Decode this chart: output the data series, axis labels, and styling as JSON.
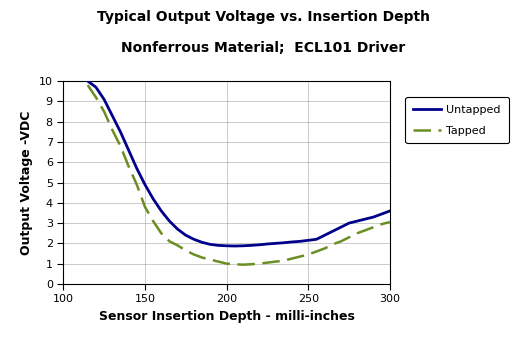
{
  "title_line1": "Typical Output Voltage vs. Insertion Depth",
  "title_line2": "Nonferrous Material;  ECL101 Driver",
  "xlabel": "Sensor Insertion Depth - milli-inches",
  "ylabel": "Output Voltage -VDC",
  "xlim": [
    100,
    300
  ],
  "ylim": [
    0,
    10
  ],
  "xticks": [
    100,
    150,
    200,
    250,
    300
  ],
  "yticks": [
    0,
    1,
    2,
    3,
    4,
    5,
    6,
    7,
    8,
    9,
    10
  ],
  "untapped_x": [
    115,
    120,
    125,
    130,
    135,
    140,
    145,
    150,
    155,
    160,
    165,
    170,
    175,
    180,
    185,
    190,
    195,
    200,
    205,
    210,
    215,
    220,
    225,
    230,
    235,
    240,
    245,
    250,
    255,
    260,
    265,
    270,
    275,
    280,
    285,
    290,
    295,
    300
  ],
  "untapped_y": [
    10.0,
    9.7,
    9.1,
    8.3,
    7.5,
    6.6,
    5.7,
    4.9,
    4.2,
    3.6,
    3.1,
    2.7,
    2.4,
    2.2,
    2.05,
    1.95,
    1.9,
    1.88,
    1.87,
    1.88,
    1.9,
    1.93,
    1.97,
    2.0,
    2.03,
    2.07,
    2.1,
    2.15,
    2.2,
    2.4,
    2.6,
    2.8,
    3.0,
    3.1,
    3.2,
    3.3,
    3.45,
    3.6
  ],
  "tapped_x": [
    115,
    120,
    125,
    130,
    135,
    140,
    145,
    150,
    155,
    160,
    165,
    170,
    175,
    180,
    185,
    190,
    195,
    200,
    205,
    210,
    215,
    220,
    225,
    230,
    235,
    240,
    245,
    250,
    255,
    260,
    265,
    270,
    275,
    280,
    285,
    290,
    295,
    300
  ],
  "tapped_y": [
    9.8,
    9.2,
    8.5,
    7.6,
    6.8,
    5.8,
    4.9,
    3.8,
    3.1,
    2.5,
    2.1,
    1.9,
    1.65,
    1.45,
    1.3,
    1.2,
    1.1,
    1.0,
    0.97,
    0.95,
    0.97,
    1.0,
    1.05,
    1.1,
    1.15,
    1.25,
    1.35,
    1.45,
    1.6,
    1.75,
    1.95,
    2.1,
    2.3,
    2.5,
    2.65,
    2.8,
    2.95,
    3.05
  ],
  "untapped_color": "#00008B",
  "tapped_color": "#6B8E23",
  "background_color": "#ffffff",
  "plot_bg_color": "#ffffff",
  "grid_color": "#888888",
  "legend_labels": [
    "Untapped",
    "Tapped"
  ],
  "title_fontsize": 10,
  "label_fontsize": 9,
  "tick_fontsize": 8,
  "legend_fontsize": 8
}
